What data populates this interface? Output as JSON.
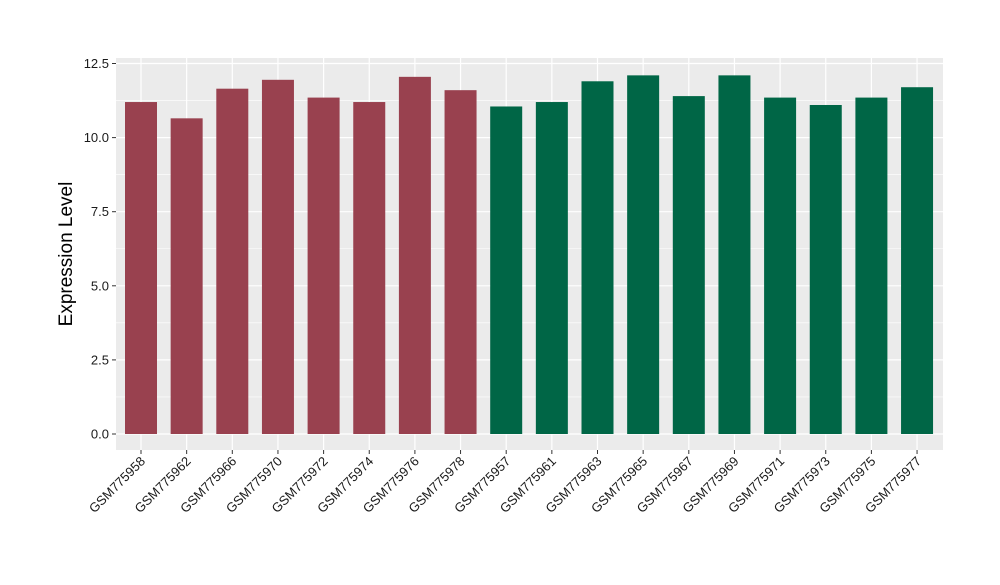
{
  "chart_data": {
    "type": "bar",
    "title": "",
    "xlabel": "",
    "ylabel": "Expression Level",
    "ylim": [
      0,
      12.5
    ],
    "yticks": [
      0.0,
      2.5,
      5.0,
      7.5,
      10.0,
      12.5
    ],
    "ytick_labels": [
      "0.0",
      "2.5",
      "5.0",
      "7.5",
      "10.0",
      "12.5"
    ],
    "grid": true,
    "legend": "none",
    "categories": [
      "GSM775958",
      "GSM775962",
      "GSM775966",
      "GSM775970",
      "GSM775972",
      "GSM775974",
      "GSM775976",
      "GSM775978",
      "GSM775957",
      "GSM775961",
      "GSM775963",
      "GSM775965",
      "GSM775967",
      "GSM775969",
      "GSM775971",
      "GSM775973",
      "GSM775975",
      "GSM775977"
    ],
    "values": [
      11.2,
      10.65,
      11.65,
      11.95,
      11.35,
      11.2,
      12.05,
      11.6,
      11.05,
      11.2,
      11.9,
      12.1,
      11.4,
      12.1,
      11.35,
      11.1,
      11.35,
      11.7
    ],
    "groups": [
      "red",
      "red",
      "red",
      "red",
      "red",
      "red",
      "red",
      "red",
      "green",
      "green",
      "green",
      "green",
      "green",
      "green",
      "green",
      "green",
      "green",
      "green"
    ],
    "colors": {
      "red": "#99414f",
      "green": "#006646",
      "panel": "#ebebeb",
      "grid": "#ffffff"
    }
  }
}
